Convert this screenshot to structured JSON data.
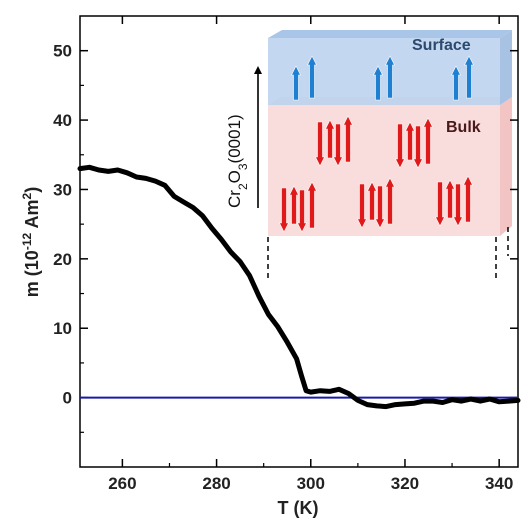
{
  "chart_data": {
    "type": "line",
    "title": "",
    "xlabel": "T (K)",
    "ylabel": {
      "prefix": "m (10",
      "exp1": "-12",
      "mid": " Am",
      "exp2": "2",
      "suffix": ")"
    },
    "xlim": [
      251,
      344
    ],
    "ylim": [
      -10,
      55
    ],
    "xticks": [
      260,
      280,
      300,
      320,
      340
    ],
    "yticks": [
      0,
      10,
      20,
      30,
      40,
      50
    ],
    "grid": false,
    "baseline": {
      "y": 0,
      "color": "#1a1aa8"
    },
    "series": [
      {
        "color": "#000000",
        "x": [
          251,
          253,
          255,
          257,
          259,
          261,
          263,
          265,
          267,
          269,
          271,
          273,
          275,
          277,
          279,
          281,
          283,
          285,
          287,
          289,
          291,
          293,
          295,
          297,
          298,
          299,
          300,
          302,
          304,
          306,
          308,
          310,
          312,
          314,
          316,
          318,
          320,
          322,
          324,
          326,
          328,
          330,
          332,
          334,
          336,
          338,
          340,
          342,
          344
        ],
        "y": [
          33.0,
          33.2,
          32.8,
          32.6,
          32.8,
          32.4,
          31.8,
          31.6,
          31.2,
          30.6,
          29.0,
          28.2,
          27.4,
          26.2,
          24.4,
          22.8,
          21.0,
          19.6,
          17.6,
          14.6,
          12.0,
          10.2,
          8.0,
          5.6,
          3.2,
          1.0,
          0.8,
          1.0,
          0.9,
          1.2,
          0.6,
          -0.4,
          -1.0,
          -1.2,
          -1.3,
          -1.0,
          -0.9,
          -0.8,
          -0.5,
          -0.5,
          -0.7,
          -0.3,
          -0.5,
          -0.2,
          -0.5,
          -0.2,
          -0.6,
          -0.5,
          -0.4
        ]
      }
    ]
  },
  "inset": {
    "material_label": {
      "p1": "Cr",
      "s1": "2",
      "p2": "O",
      "s2": "3",
      "p3": "(0001)"
    },
    "surface_label": "Surface",
    "bulk_label": "Bulk",
    "surface_color": "#bcd3ee",
    "bulk_color": "#f9dcdc",
    "surface_arrow_color": "#1f7fd1",
    "bulk_arrow_color": "#e01a1a"
  }
}
